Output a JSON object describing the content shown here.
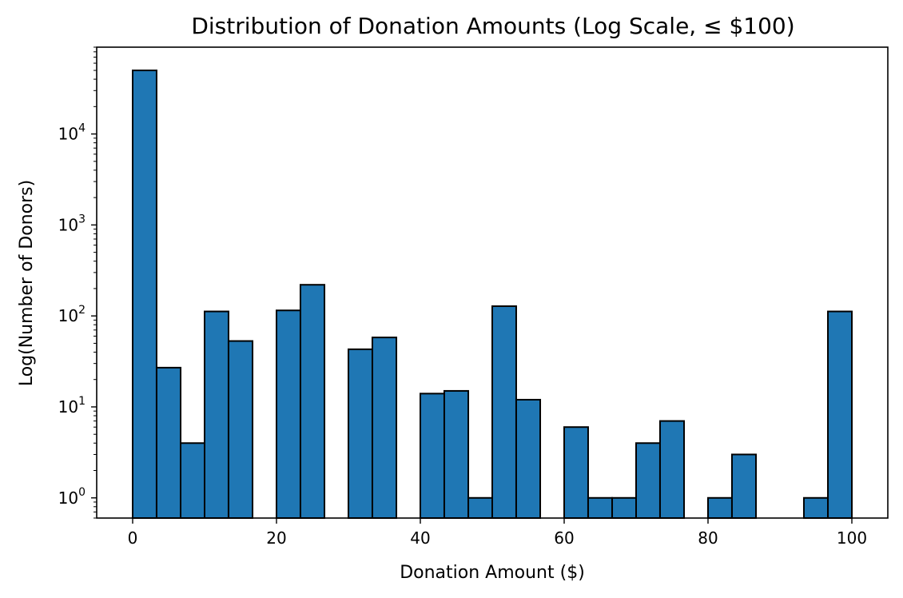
{
  "chart_data": {
    "type": "bar",
    "title": "Distribution of Donation Amounts (Log Scale, ≤ $100)",
    "xlabel": "Donation Amount ($)",
    "ylabel": "Log(Number of Donors)",
    "xlim": [
      -5,
      105
    ],
    "ylim": [
      0.6,
      90000
    ],
    "y_scale": "log",
    "grid": false,
    "legend": "none",
    "colors": {
      "bar_fill": "#1f77b4",
      "bar_edge": "#000000"
    },
    "x_ticks": [
      0,
      20,
      40,
      60,
      80,
      100
    ],
    "x_tick_labels": [
      "0",
      "20",
      "40",
      "60",
      "80",
      "100"
    ],
    "y_ticks": [
      1,
      10,
      100,
      1000,
      10000
    ],
    "y_tick_labels": [
      {
        "base": "10",
        "exp": "0"
      },
      {
        "base": "10",
        "exp": "1"
      },
      {
        "base": "10",
        "exp": "2"
      },
      {
        "base": "10",
        "exp": "3"
      },
      {
        "base": "10",
        "exp": "4"
      }
    ],
    "bins": [
      {
        "x0": 0.0,
        "x1": 3.33,
        "count": 50000
      },
      {
        "x0": 3.33,
        "x1": 6.67,
        "count": 27
      },
      {
        "x0": 6.67,
        "x1": 10.0,
        "count": 4
      },
      {
        "x0": 10.0,
        "x1": 13.33,
        "count": 112
      },
      {
        "x0": 13.33,
        "x1": 16.67,
        "count": 53
      },
      {
        "x0": 16.67,
        "x1": 20.0,
        "count": 0
      },
      {
        "x0": 20.0,
        "x1": 23.33,
        "count": 115
      },
      {
        "x0": 23.33,
        "x1": 26.67,
        "count": 220
      },
      {
        "x0": 26.67,
        "x1": 30.0,
        "count": 0
      },
      {
        "x0": 30.0,
        "x1": 33.33,
        "count": 43
      },
      {
        "x0": 33.33,
        "x1": 36.67,
        "count": 58
      },
      {
        "x0": 36.67,
        "x1": 40.0,
        "count": 0
      },
      {
        "x0": 40.0,
        "x1": 43.33,
        "count": 14
      },
      {
        "x0": 43.33,
        "x1": 46.67,
        "count": 15
      },
      {
        "x0": 46.67,
        "x1": 50.0,
        "count": 1
      },
      {
        "x0": 50.0,
        "x1": 53.33,
        "count": 128
      },
      {
        "x0": 53.33,
        "x1": 56.67,
        "count": 12
      },
      {
        "x0": 56.67,
        "x1": 60.0,
        "count": 0
      },
      {
        "x0": 60.0,
        "x1": 63.33,
        "count": 6
      },
      {
        "x0": 63.33,
        "x1": 66.67,
        "count": 1
      },
      {
        "x0": 66.67,
        "x1": 70.0,
        "count": 1
      },
      {
        "x0": 70.0,
        "x1": 73.33,
        "count": 4
      },
      {
        "x0": 73.33,
        "x1": 76.67,
        "count": 7
      },
      {
        "x0": 76.67,
        "x1": 80.0,
        "count": 0
      },
      {
        "x0": 80.0,
        "x1": 83.33,
        "count": 1
      },
      {
        "x0": 83.33,
        "x1": 86.67,
        "count": 3
      },
      {
        "x0": 86.67,
        "x1": 90.0,
        "count": 0
      },
      {
        "x0": 90.0,
        "x1": 93.33,
        "count": 0
      },
      {
        "x0": 93.33,
        "x1": 96.67,
        "count": 1
      },
      {
        "x0": 96.67,
        "x1": 100.0,
        "count": 112
      }
    ]
  }
}
